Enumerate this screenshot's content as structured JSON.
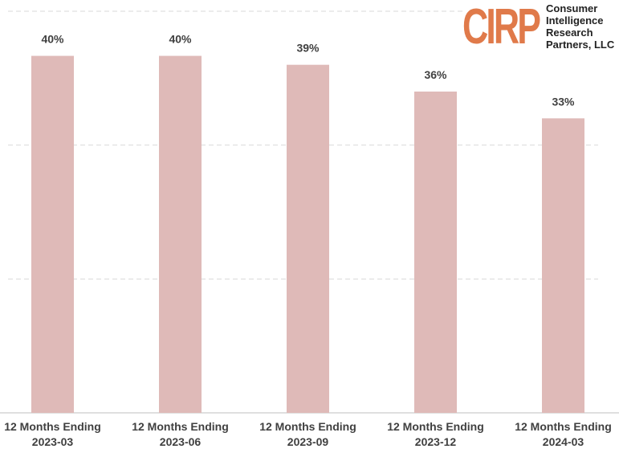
{
  "chart_data": {
    "type": "bar",
    "categories": [
      "12 Months Ending\n2023-03",
      "12 Months Ending\n2023-06",
      "12 Months Ending\n2023-09",
      "12 Months Ending\n2023-12",
      "12 Months Ending\n2024-03"
    ],
    "values": [
      40,
      40,
      39,
      36,
      33
    ],
    "value_labels": [
      "40%",
      "40%",
      "39%",
      "36%",
      "33%"
    ],
    "color": "#dfbab8",
    "ylim": [
      0,
      45
    ],
    "yticks": [
      0,
      15,
      30,
      45
    ],
    "grid": true
  },
  "logo": {
    "mark": "CIRP",
    "lines": [
      "Consumer",
      "Intelligence",
      "Research",
      "Partners, LLC"
    ]
  }
}
